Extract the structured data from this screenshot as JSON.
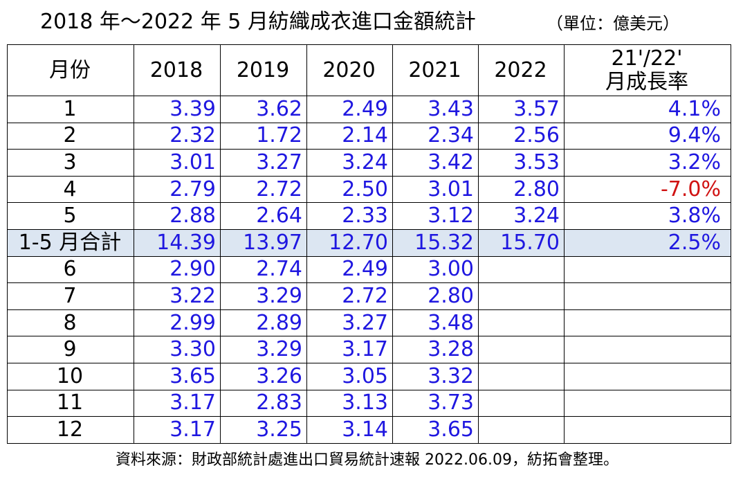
{
  "title": "2018 年～2022 年 5 月紡織成衣進口金額統計",
  "unit": "（單位：億美元）",
  "headers": {
    "month": "月份",
    "years": [
      "2018",
      "2019",
      "2020",
      "2021",
      "2022"
    ],
    "rate_line1": "21'/22'",
    "rate_line2": "月成長率"
  },
  "rows": [
    {
      "month": "1",
      "values": [
        "3.39",
        "3.62",
        "2.49",
        "3.43",
        "3.57"
      ],
      "rate": "4.1%",
      "negative": false,
      "total": false
    },
    {
      "month": "2",
      "values": [
        "2.32",
        "1.72",
        "2.14",
        "2.34",
        "2.56"
      ],
      "rate": "9.4%",
      "negative": false,
      "total": false
    },
    {
      "month": "3",
      "values": [
        "3.01",
        "3.27",
        "3.24",
        "3.42",
        "3.53"
      ],
      "rate": "3.2%",
      "negative": false,
      "total": false
    },
    {
      "month": "4",
      "values": [
        "2.79",
        "2.72",
        "2.50",
        "3.01",
        "2.80"
      ],
      "rate": "-7.0%",
      "negative": true,
      "total": false
    },
    {
      "month": "5",
      "values": [
        "2.88",
        "2.64",
        "2.33",
        "3.12",
        "3.24"
      ],
      "rate": "3.8%",
      "negative": false,
      "total": false
    },
    {
      "month": "1-5 月合計",
      "values": [
        "14.39",
        "13.97",
        "12.70",
        "15.32",
        "15.70"
      ],
      "rate": "2.5%",
      "negative": false,
      "total": true
    },
    {
      "month": "6",
      "values": [
        "2.90",
        "2.74",
        "2.49",
        "3.00",
        ""
      ],
      "rate": "",
      "negative": false,
      "total": false
    },
    {
      "month": "7",
      "values": [
        "3.22",
        "3.29",
        "2.72",
        "2.80",
        ""
      ],
      "rate": "",
      "negative": false,
      "total": false
    },
    {
      "month": "8",
      "values": [
        "2.99",
        "2.89",
        "3.27",
        "3.48",
        ""
      ],
      "rate": "",
      "negative": false,
      "total": false
    },
    {
      "month": "9",
      "values": [
        "3.30",
        "3.29",
        "3.17",
        "3.28",
        ""
      ],
      "rate": "",
      "negative": false,
      "total": false
    },
    {
      "month": "10",
      "values": [
        "3.65",
        "3.26",
        "3.05",
        "3.32",
        ""
      ],
      "rate": "",
      "negative": false,
      "total": false
    },
    {
      "month": "11",
      "values": [
        "3.17",
        "2.83",
        "3.13",
        "3.73",
        ""
      ],
      "rate": "",
      "negative": false,
      "total": false
    },
    {
      "month": "12",
      "values": [
        "3.17",
        "3.25",
        "3.14",
        "3.65",
        ""
      ],
      "rate": "",
      "negative": false,
      "total": false
    }
  ],
  "colors": {
    "value_text": "#1f17e0",
    "negative_text": "#d01212",
    "total_row_bg": "#dce6f2"
  },
  "source": "資料來源：財政部統計處進出口貿易統計速報 2022.06.09，紡拓會整理。"
}
